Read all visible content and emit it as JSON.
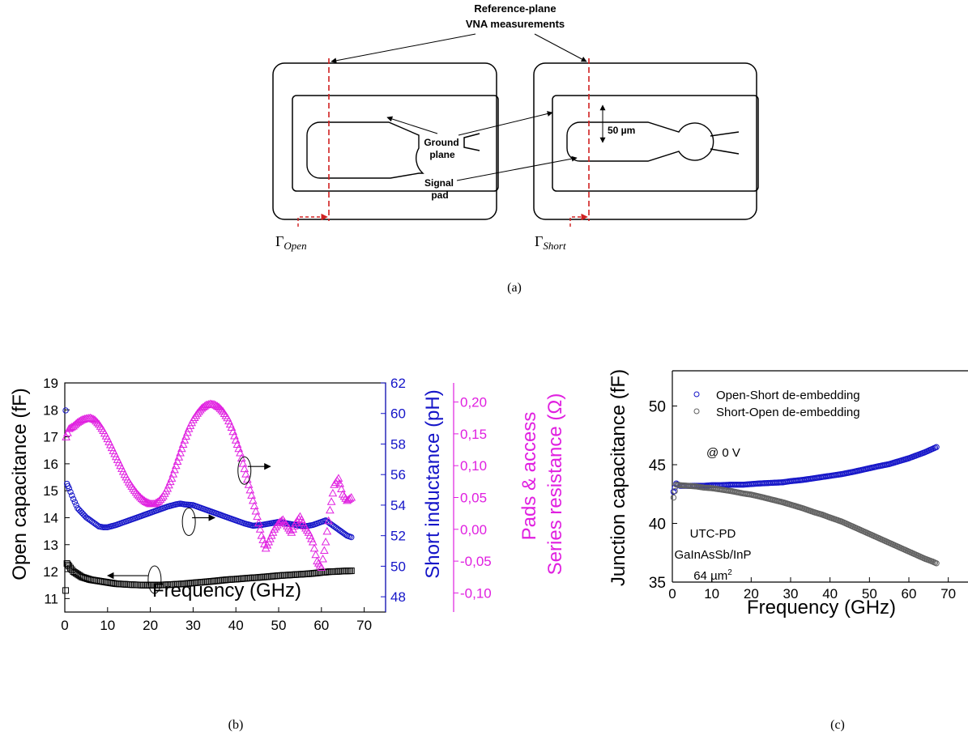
{
  "diagram": {
    "title_line1": "Reference-plane",
    "title_line2": "VNA measurements",
    "ground_label_line1": "Ground",
    "ground_label_line2": "plane",
    "signal_label_line1": "Signal",
    "signal_label_line2": "pad",
    "dimension_label": "50 µm",
    "gamma_open": "Γ",
    "gamma_open_sub": "Open",
    "gamma_short": "Γ",
    "gamma_short_sub": "Short",
    "caption": "(a)"
  },
  "colors": {
    "black": "#000000",
    "blue": "#1414c8",
    "magenta": "#e020e0",
    "red_dash": "#d02020",
    "gray": "#606060"
  },
  "chart_data": [
    {
      "id": "b",
      "type": "scatter",
      "caption": "(b)",
      "xlabel": "Frequency (GHz)",
      "xlim": [
        0,
        75
      ],
      "xticks": [
        0,
        10,
        20,
        30,
        40,
        50,
        60,
        70
      ],
      "axes": [
        {
          "id": "left",
          "label": "Open capacitance (fF)",
          "ylim": [
            10.5,
            19
          ],
          "ticks": [
            11,
            12,
            13,
            14,
            15,
            16,
            17,
            18,
            19
          ],
          "tick_labels": [
            "11",
            "12",
            "13",
            "14",
            "15",
            "16",
            "17",
            "18",
            "19"
          ],
          "color": "#000000"
        },
        {
          "id": "blue",
          "label": "Short inductance (pH)",
          "ylim": [
            47,
            62
          ],
          "ticks": [
            48,
            50,
            52,
            54,
            56,
            58,
            60,
            62
          ],
          "tick_labels": [
            "48",
            "50",
            "52",
            "54",
            "56",
            "58",
            "60",
            "62"
          ],
          "color": "#1414c8"
        },
        {
          "id": "mag",
          "label_line1": "Pads & access",
          "label_line2": "Series resistance (Ω)",
          "ylim": [
            -0.13,
            0.23
          ],
          "ticks": [
            -0.1,
            -0.05,
            0.0,
            0.05,
            0.1,
            0.15,
            0.2
          ],
          "tick_labels": [
            "-0,10",
            "-0,05",
            "0,00",
            "0,05",
            "0,10",
            "0,15",
            "0,20"
          ],
          "color": "#e020e0"
        }
      ],
      "series": [
        {
          "axis": "left",
          "marker": "square",
          "color": "#000000",
          "x": [
            0.2,
            0.5,
            1,
            2,
            3,
            4,
            5,
            6,
            8,
            10,
            12,
            15,
            18,
            20,
            22,
            25,
            28,
            30,
            33,
            35,
            38,
            40,
            43,
            45,
            48,
            50,
            53,
            55,
            57,
            59,
            60,
            61,
            62,
            63,
            65,
            67
          ],
          "y": [
            11.3,
            12.3,
            12.2,
            12.0,
            11.9,
            11.8,
            11.75,
            11.7,
            11.65,
            11.6,
            11.55,
            11.52,
            11.5,
            11.5,
            11.5,
            11.52,
            11.55,
            11.58,
            11.62,
            11.65,
            11.7,
            11.72,
            11.76,
            11.78,
            11.82,
            11.85,
            11.88,
            11.9,
            11.92,
            11.95,
            11.97,
            11.98,
            12.0,
            12.0,
            12.02,
            12.03
          ]
        },
        {
          "axis": "blue",
          "marker": "circle",
          "color": "#1414c8",
          "x": [
            0.2,
            0.5,
            1,
            2,
            3,
            4,
            5,
            6,
            7,
            8,
            9,
            10,
            12,
            14,
            16,
            18,
            20,
            22,
            24,
            26,
            27,
            28,
            30,
            32,
            34,
            36,
            38,
            40,
            42,
            44,
            46,
            48,
            50,
            52,
            54,
            56,
            58,
            60,
            61,
            62,
            63,
            64,
            65,
            66,
            67
          ],
          "y": [
            60.2,
            55.4,
            55.1,
            54.4,
            53.8,
            53.5,
            53.2,
            53.0,
            52.8,
            52.6,
            52.55,
            52.55,
            52.7,
            52.9,
            53.1,
            53.3,
            53.5,
            53.7,
            53.9,
            54.05,
            54.1,
            54.05,
            54.0,
            53.8,
            53.6,
            53.4,
            53.2,
            53.0,
            52.8,
            52.65,
            52.7,
            52.8,
            52.9,
            52.8,
            52.7,
            52.6,
            52.7,
            52.9,
            53.0,
            52.8,
            52.6,
            52.4,
            52.2,
            52.0,
            51.9
          ]
        },
        {
          "axis": "mag",
          "marker": "triangle",
          "color": "#e020e0",
          "x": [
            0.3,
            1,
            2,
            3,
            4,
            5,
            6,
            7,
            8,
            9,
            10,
            11,
            12,
            13,
            14,
            15,
            16,
            17,
            18,
            19,
            20,
            21,
            22,
            23,
            24,
            25,
            26,
            27,
            28,
            29,
            30,
            31,
            32,
            33,
            34,
            35,
            36,
            37,
            38,
            39,
            40,
            41,
            42,
            43,
            44,
            45,
            46,
            47,
            48,
            49,
            50,
            51,
            52,
            53,
            54,
            55,
            56,
            57,
            58,
            59,
            60,
            61,
            62,
            63,
            64,
            65,
            66,
            67
          ],
          "y": [
            0.145,
            0.158,
            0.162,
            0.168,
            0.172,
            0.174,
            0.175,
            0.172,
            0.165,
            0.155,
            0.142,
            0.128,
            0.114,
            0.1,
            0.086,
            0.074,
            0.064,
            0.055,
            0.048,
            0.043,
            0.04,
            0.04,
            0.044,
            0.052,
            0.064,
            0.08,
            0.1,
            0.12,
            0.14,
            0.158,
            0.172,
            0.182,
            0.19,
            0.195,
            0.197,
            0.196,
            0.192,
            0.185,
            0.175,
            0.16,
            0.14,
            0.12,
            0.095,
            0.07,
            0.045,
            0.02,
            -0.01,
            -0.03,
            -0.015,
            0.0,
            0.01,
            0.015,
            0.005,
            -0.005,
            0.01,
            0.02,
            0.005,
            -0.005,
            -0.02,
            -0.05,
            -0.06,
            -0.02,
            0.03,
            0.07,
            0.08,
            0.055,
            0.045,
            0.05
          ]
        }
      ],
      "annotations": [
        {
          "x": 21,
          "y": 11.7,
          "axis": "left",
          "direction": "left"
        },
        {
          "x": 29,
          "y": 13.85,
          "axis": "left",
          "direction": "right"
        },
        {
          "x": 42,
          "y": 15.75,
          "axis": "left",
          "direction": "right"
        }
      ]
    },
    {
      "id": "c",
      "type": "scatter",
      "caption": "(c)",
      "xlabel": "Frequency (GHz)",
      "ylabel": "Junction capacitance (fF)",
      "xlim": [
        0,
        75
      ],
      "ylim": [
        35,
        53
      ],
      "xticks": [
        0,
        10,
        20,
        30,
        40,
        50,
        60,
        70
      ],
      "yticks": [
        35,
        40,
        45,
        50
      ],
      "legend": "top-left",
      "annotation_bias": "@ 0 V",
      "annotation_device_line1": "UTC-PD",
      "annotation_device_line2": "GaInAsSb/InP",
      "annotation_device_line3": "64 µm",
      "annotation_device_sup": "2",
      "series": [
        {
          "name": "Open-Short de-embedding",
          "marker": "circle",
          "color": "#1414c8",
          "x": [
            0.3,
            1,
            2,
            4,
            6,
            8,
            10,
            12,
            15,
            18,
            20,
            22,
            25,
            28,
            30,
            33,
            36,
            38,
            40,
            43,
            46,
            48,
            50,
            52,
            55,
            57,
            60,
            62,
            64,
            66,
            67
          ],
          "y": [
            42.7,
            43.4,
            43.2,
            43.2,
            43.2,
            43.2,
            43.25,
            43.25,
            43.3,
            43.3,
            43.35,
            43.4,
            43.45,
            43.5,
            43.6,
            43.7,
            43.85,
            43.95,
            44.05,
            44.2,
            44.4,
            44.55,
            44.7,
            44.85,
            45.05,
            45.25,
            45.55,
            45.8,
            46.05,
            46.35,
            46.5
          ]
        },
        {
          "name": "Short-Open de-embedding",
          "marker": "circle",
          "color": "#606060",
          "x": [
            0.3,
            1,
            2,
            4,
            6,
            8,
            10,
            12,
            15,
            18,
            20,
            22,
            25,
            28,
            30,
            33,
            36,
            38,
            40,
            43,
            46,
            48,
            50,
            52,
            55,
            57,
            60,
            62,
            64,
            66,
            67
          ],
          "y": [
            42.2,
            43.3,
            43.25,
            43.2,
            43.15,
            43.05,
            43.0,
            42.9,
            42.75,
            42.55,
            42.45,
            42.3,
            42.05,
            41.8,
            41.6,
            41.3,
            40.95,
            40.75,
            40.5,
            40.15,
            39.7,
            39.4,
            39.1,
            38.8,
            38.35,
            38.05,
            37.6,
            37.3,
            37.0,
            36.75,
            36.6
          ]
        }
      ]
    }
  ]
}
